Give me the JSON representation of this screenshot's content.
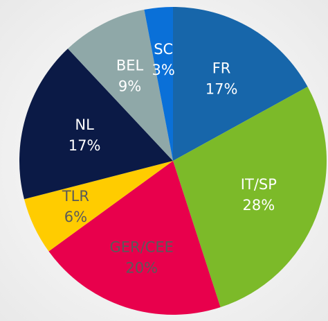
{
  "chart_data": {
    "type": "pie",
    "categories": [
      "FR",
      "IT/SP",
      "GER/CEE",
      "TLR",
      "NL",
      "BEL",
      "SC"
    ],
    "values": [
      17,
      28,
      20,
      6,
      17,
      9,
      3
    ],
    "value_labels": [
      "17%",
      "28%",
      "20%",
      "6%",
      "17%",
      "9%",
      "3%"
    ],
    "colors": [
      "#1766aa",
      "#7cba29",
      "#e8004c",
      "#ffcc00",
      "#0b1a46",
      "#8fa8a8",
      "#0a70d8"
    ],
    "label_colors": [
      "#ffffff",
      "#ffffff",
      "#5a5a5a",
      "#5a5a5a",
      "#ffffff",
      "#ffffff",
      "#ffffff"
    ]
  }
}
